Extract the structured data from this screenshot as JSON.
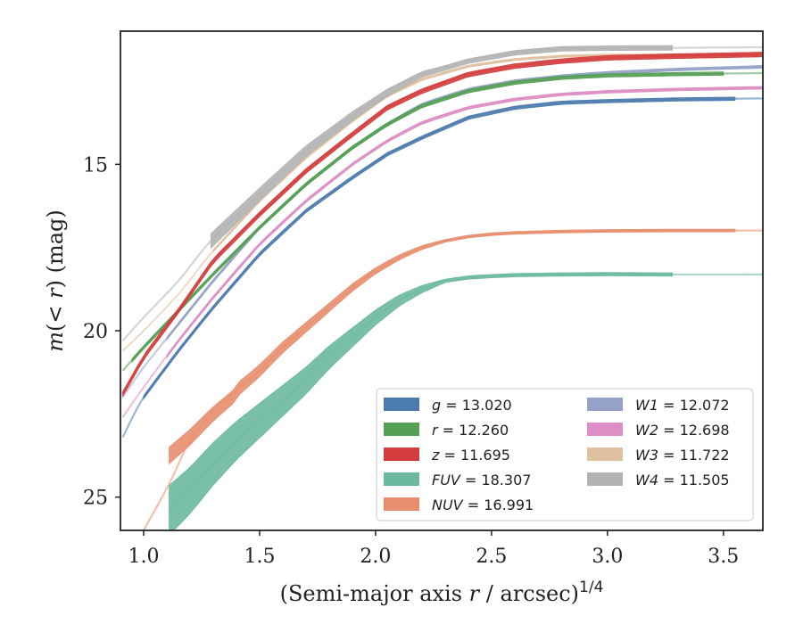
{
  "chart_data": {
    "type": "line",
    "title": "",
    "xlabel_main": "(Semi-major axis ",
    "xlabel_var": "r",
    "xlabel_unit": " / arcsec)",
    "xlabel_exp": "1/4",
    "ylabel_m": "m",
    "ylabel_paren_open": "(< ",
    "ylabel_var": "r",
    "ylabel_paren_close": ") (mag)",
    "xlim": [
      0.9,
      3.67
    ],
    "ylim": [
      26.0,
      11.0
    ],
    "y_inverted": true,
    "xticks": [
      1.0,
      1.5,
      2.0,
      2.5,
      3.0,
      3.5
    ],
    "xtick_labels": [
      "1.0",
      "1.5",
      "2.0",
      "2.5",
      "3.0",
      "3.5"
    ],
    "yticks": [
      15,
      20,
      25
    ],
    "ytick_labels": [
      "15",
      "20",
      "25"
    ],
    "grid": false,
    "legend_position": "lower-right",
    "legend": [
      {
        "band": "g",
        "label": " = 13.020",
        "color": "#4c7bad"
      },
      {
        "band": "r",
        "label": " = 12.260",
        "color": "#55a055"
      },
      {
        "band": "z",
        "label": " = 11.695",
        "color": "#d43d3d"
      },
      {
        "band": "FUV",
        "label": " = 18.307",
        "color": "#6cb8a0"
      },
      {
        "band": "NUV",
        "label": " = 16.991",
        "color": "#e88e6e"
      },
      {
        "band": "W1",
        "label": " = 12.072",
        "color": "#95a2c8"
      },
      {
        "band": "W2",
        "label": " = 12.698",
        "color": "#dd8ec4"
      },
      {
        "band": "W3",
        "label": " = 11.722",
        "color": "#dfc19f"
      },
      {
        "band": "W4",
        "label": " = 11.505",
        "color": "#b2b2b2"
      }
    ],
    "series": [
      {
        "band": "W3",
        "color": "#dfc19f",
        "x": [
          0.91,
          1.0,
          1.15,
          1.3,
          1.5,
          1.7,
          1.9,
          2.05,
          2.2,
          2.4,
          2.6,
          2.8,
          3.0,
          3.3,
          3.67
        ],
        "y": [
          20.6,
          20.0,
          18.9,
          17.6,
          16.1,
          14.8,
          13.7,
          12.95,
          12.45,
          12.05,
          11.85,
          11.75,
          11.72,
          11.71,
          11.7
        ],
        "band_x0": 1.3,
        "band_x1": 3.67,
        "halfwidth": 0.03
      },
      {
        "band": "W1",
        "color": "#95a2c8",
        "x": [
          0.91,
          1.0,
          1.15,
          1.3,
          1.5,
          1.7,
          1.9,
          2.05,
          2.2,
          2.4,
          2.6,
          2.8,
          3.0,
          3.3,
          3.67
        ],
        "y": [
          22.0,
          21.1,
          19.8,
          18.5,
          16.9,
          15.6,
          14.5,
          13.8,
          13.2,
          12.75,
          12.5,
          12.35,
          12.25,
          12.15,
          12.07
        ],
        "band_x0": 1.1,
        "band_x1": 3.67,
        "halfwidth": 0.04
      },
      {
        "band": "W2",
        "color": "#dd8ec4",
        "x": [
          0.91,
          1.0,
          1.15,
          1.3,
          1.5,
          1.7,
          1.9,
          2.05,
          2.2,
          2.4,
          2.6,
          2.8,
          3.0,
          3.3,
          3.67
        ],
        "y": [
          22.6,
          21.7,
          20.3,
          19.0,
          17.4,
          16.1,
          15.0,
          14.3,
          13.75,
          13.3,
          13.05,
          12.9,
          12.82,
          12.75,
          12.7
        ],
        "band_x0": 1.1,
        "band_x1": 3.67,
        "halfwidth": 0.04
      },
      {
        "band": "g",
        "color": "#4c7bad",
        "x": [
          0.91,
          1.0,
          1.15,
          1.3,
          1.5,
          1.7,
          1.9,
          2.05,
          2.2,
          2.4,
          2.6,
          2.8,
          3.0,
          3.3,
          3.67
        ],
        "y": [
          23.2,
          22.0,
          20.6,
          19.3,
          17.7,
          16.4,
          15.4,
          14.7,
          14.2,
          13.6,
          13.3,
          13.15,
          13.1,
          13.05,
          13.02
        ],
        "band_x0": 1.0,
        "band_x1": 3.55,
        "halfwidth": 0.05
      },
      {
        "band": "r",
        "color": "#55a055",
        "x": [
          0.91,
          1.0,
          1.15,
          1.3,
          1.5,
          1.7,
          1.9,
          2.05,
          2.2,
          2.4,
          2.6,
          2.8,
          3.0,
          3.3,
          3.67
        ],
        "y": [
          21.2,
          20.5,
          19.4,
          18.3,
          16.9,
          15.6,
          14.5,
          13.8,
          13.25,
          12.8,
          12.55,
          12.4,
          12.33,
          12.29,
          12.26
        ],
        "band_x0": 0.95,
        "band_x1": 3.5,
        "halfwidth": 0.05
      },
      {
        "band": "z",
        "color": "#d43d3d",
        "x": [
          0.91,
          1.0,
          1.15,
          1.3,
          1.5,
          1.7,
          1.9,
          2.05,
          2.2,
          2.4,
          2.6,
          2.8,
          3.0,
          3.3,
          3.67
        ],
        "y": [
          21.9,
          20.8,
          19.4,
          17.9,
          16.5,
          15.2,
          14.1,
          13.3,
          12.8,
          12.3,
          12.05,
          11.9,
          11.8,
          11.75,
          11.7
        ],
        "band_x0": 0.91,
        "band_x1": 3.67,
        "halfwidth": 0.07
      },
      {
        "band": "W4",
        "color": "#b2b2b2",
        "x": [
          0.91,
          1.0,
          1.15,
          1.29,
          1.5,
          1.7,
          1.9,
          2.05,
          2.2,
          2.4,
          2.6,
          2.8,
          3.0,
          3.28,
          3.67
        ],
        "y": [
          20.3,
          19.6,
          18.5,
          17.3,
          15.9,
          14.6,
          13.55,
          12.85,
          12.3,
          11.9,
          11.65,
          11.53,
          11.51,
          11.5,
          11.48
        ],
        "band_x0": 1.29,
        "band_x1": 3.28,
        "halfwidth": 0.22,
        "band_taper_to": 0.07
      },
      {
        "band": "NUV",
        "color": "#e88e6e",
        "x": [
          1.0,
          1.11,
          1.2,
          1.3,
          1.4,
          1.5,
          1.6,
          1.7,
          1.8,
          1.9,
          2.0,
          2.1,
          2.2,
          2.3,
          2.4,
          2.5,
          2.6,
          2.8,
          3.0,
          3.3,
          3.67
        ],
        "y": [
          26.0,
          24.6,
          23.3,
          22.4,
          21.8,
          21.2,
          20.5,
          19.9,
          19.3,
          18.7,
          18.2,
          17.8,
          17.5,
          17.3,
          17.17,
          17.1,
          17.06,
          17.02,
          17.0,
          16.99,
          16.99
        ],
        "band_x0": 1.11,
        "band_x1": 3.55,
        "halfwidth": 0.25,
        "band_taper_to": 0.04,
        "band_y_override": [
          [
            1.11,
            23.75
          ],
          [
            1.2,
            23.2
          ],
          [
            1.3,
            22.5
          ],
          [
            1.4,
            21.9
          ]
        ]
      },
      {
        "band": "FUV",
        "color": "#6cb8a0",
        "x": [
          1.11,
          1.2,
          1.3,
          1.4,
          1.5,
          1.6,
          1.7,
          1.8,
          1.9,
          2.0,
          2.1,
          2.2,
          2.3,
          2.4,
          2.5,
          2.6,
          2.8,
          3.0,
          3.28,
          3.67
        ],
        "y": [
          25.4,
          24.8,
          24.0,
          23.3,
          22.7,
          22.1,
          21.5,
          20.8,
          20.2,
          19.6,
          19.1,
          18.75,
          18.5,
          18.4,
          18.36,
          18.33,
          18.31,
          18.3,
          18.31,
          18.31
        ],
        "band_x0": 1.11,
        "band_x1": 3.28,
        "halfwidth": 0.75,
        "band_taper_to": 0.05
      }
    ]
  }
}
